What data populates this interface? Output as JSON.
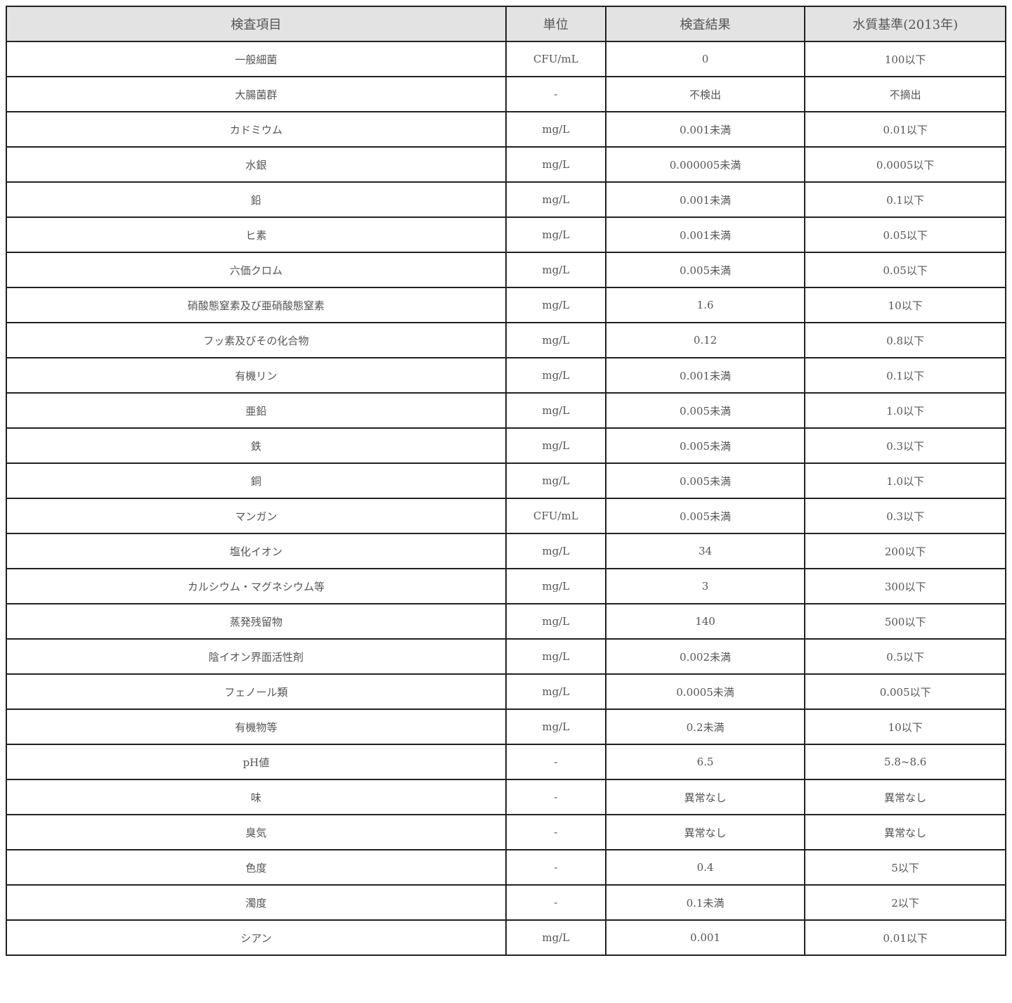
{
  "headers": [
    "検査項目",
    "単位",
    "検査結果",
    "水質基準(2013年)"
  ],
  "rows": [
    [
      "一般細菌",
      "CFU/mL",
      "0",
      "100以下"
    ],
    [
      "大腸菌群",
      "-",
      "不検出",
      "不摘出"
    ],
    [
      "カドミウム",
      "mg/L",
      "0.001未満",
      "0.01以下"
    ],
    [
      "水銀",
      "mg/L",
      "0.000005未満",
      "0.0005以下"
    ],
    [
      "鉛",
      "mg/L",
      "0.001未満",
      "0.1以下"
    ],
    [
      "ヒ素",
      "mg/L",
      "0.001未満",
      "0.05以下"
    ],
    [
      "六価クロム",
      "mg/L",
      "0.005未満",
      "0.05以下"
    ],
    [
      "硝酸態窒素及び亜硝酸態窒素",
      "mg/L",
      "1.6",
      "10以下"
    ],
    [
      "フッ素及びその化合物",
      "mg/L",
      "0.12",
      "0.8以下"
    ],
    [
      "有機リン",
      "mg/L",
      "0.001未満",
      "0.1以下"
    ],
    [
      "亜鉛",
      "mg/L",
      "0.005未満",
      "1.0以下"
    ],
    [
      "鉄",
      "mg/L",
      "0.005未満",
      "0.3以下"
    ],
    [
      "銅",
      "mg/L",
      "0.005未満",
      "1.0以下"
    ],
    [
      "マンガン",
      "CFU/mL",
      "0.005未満",
      "0.3以下"
    ],
    [
      "塩化イオン",
      "mg/L",
      "34",
      "200以下"
    ],
    [
      "カルシウム・マグネシウム等",
      "mg/L",
      "3",
      "300以下"
    ],
    [
      "蒸発残留物",
      "mg/L",
      "140",
      "500以下"
    ],
    [
      "陰イオン界面活性剤",
      "mg/L",
      "0.002未満",
      "0.5以下"
    ],
    [
      "フェノール類",
      "mg/L",
      "0.0005未満",
      "0.005以下"
    ],
    [
      "有機物等",
      "mg/L",
      "0.2未満",
      "10以下"
    ],
    [
      "pH値",
      "-",
      "6.5",
      "5.8~8.6"
    ],
    [
      "味",
      "-",
      "異常なし",
      "異常なし"
    ],
    [
      "臭気",
      "-",
      "異常なし",
      "異常なし"
    ],
    [
      "色度",
      "-",
      "0.4",
      "5以下"
    ],
    [
      "濁度",
      "-",
      "0.1未満",
      "2以下"
    ],
    [
      "シアン",
      "mg/L",
      "0.001",
      "0.01以下"
    ]
  ],
  "colors": {
    "header_bg": "#e3e3e3",
    "border": "#222222",
    "text": "#555555"
  }
}
